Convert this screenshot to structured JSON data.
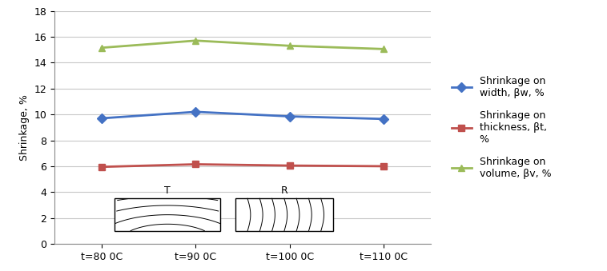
{
  "chart_data": {
    "type": "line",
    "y_label": "Shrinkage, %",
    "categories": [
      "t=80 0C",
      "t=90 0C",
      "t=100 0C",
      "t=110 0C"
    ],
    "series": [
      {
        "name": "Shrinkage on width, βw, %",
        "color": "#4472c4",
        "marker": "diamond",
        "values": [
          9.7,
          10.2,
          9.85,
          9.65
        ]
      },
      {
        "name": "Shrinkage on thickness, βt, %",
        "color": "#c0504d",
        "marker": "square",
        "values": [
          5.95,
          6.15,
          6.05,
          6.0
        ]
      },
      {
        "name": "Shrinkage on volume, βv, %",
        "color": "#9bbb59",
        "marker": "triangle",
        "values": [
          15.15,
          15.7,
          15.3,
          15.05
        ]
      }
    ],
    "ylim": [
      0,
      18
    ],
    "yticks": [
      0,
      2,
      4,
      6,
      8,
      10,
      12,
      14,
      16,
      18
    ],
    "grid": true,
    "legend": "right",
    "annotations": [
      "T",
      "R"
    ]
  }
}
